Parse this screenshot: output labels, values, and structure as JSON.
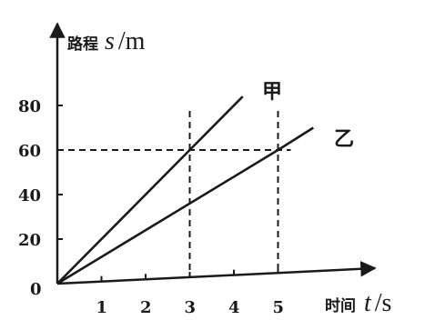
{
  "chart_data": {
    "type": "line",
    "xlabel": {
      "name": "时间",
      "symbol": "t",
      "unit": "/s"
    },
    "ylabel": {
      "name": "路程",
      "symbol": "s",
      "unit": "/m"
    },
    "x_ticks": [
      "1",
      "2",
      "3",
      "4",
      "5"
    ],
    "y_ticks": [
      "20",
      "40",
      "60",
      "80"
    ],
    "origin_label": "0",
    "xlim": [
      0,
      6
    ],
    "ylim": [
      0,
      80
    ],
    "series": [
      {
        "name": "甲",
        "x": [
          0,
          3,
          4.2
        ],
        "y": [
          0,
          60,
          84
        ]
      },
      {
        "name": "乙",
        "x": [
          0,
          5,
          5.8
        ],
        "y": [
          0,
          60,
          70
        ]
      }
    ],
    "guide_lines": [
      {
        "x": 3,
        "y": 60
      },
      {
        "x": 5,
        "y": 60
      }
    ],
    "grid": false
  }
}
